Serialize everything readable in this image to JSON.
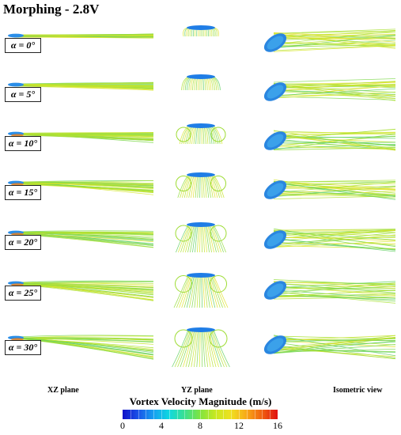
{
  "title": "Morphing - 2.8V",
  "rows": [
    {
      "alpha_label": "α = 0°",
      "alpha_deg": 0
    },
    {
      "alpha_label": "α = 5°",
      "alpha_deg": 5
    },
    {
      "alpha_label": "α = 10°",
      "alpha_deg": 10
    },
    {
      "alpha_label": "α = 15°",
      "alpha_deg": 15
    },
    {
      "alpha_label": "α = 20°",
      "alpha_deg": 20
    },
    {
      "alpha_label": "α = 25°",
      "alpha_deg": 25
    },
    {
      "alpha_label": "α = 30°",
      "alpha_deg": 30
    }
  ],
  "column_labels": {
    "xz": "XZ plane",
    "yz": "YZ plane",
    "iso": "Isometric view"
  },
  "colorbar": {
    "title": "Vortex Velocity Magnitude (m/s)",
    "ticks": [
      "0",
      "4",
      "8",
      "12",
      "16"
    ],
    "colors": [
      "#1010c8",
      "#15a0f0",
      "#10d8e0",
      "#80e440",
      "#f0e020",
      "#f06010",
      "#e01010"
    ]
  }
}
